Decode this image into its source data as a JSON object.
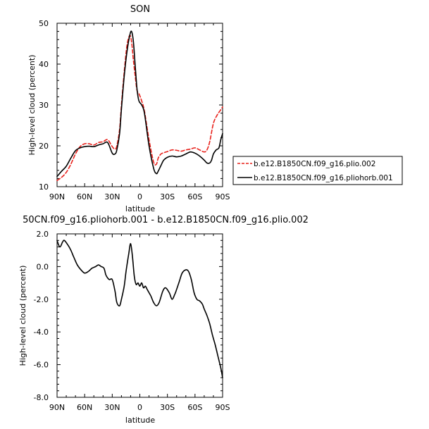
{
  "chart_data": [
    {
      "type": "line",
      "title": "SON",
      "xlabel": "latitude",
      "ylabel": "High-level cloud (percent)",
      "xlim": [
        90,
        -90
      ],
      "ylim": [
        10,
        50
      ],
      "xticks": [
        90,
        60,
        30,
        0,
        -30,
        -60,
        -90
      ],
      "xtick_labels": [
        "90N",
        "60N",
        "30N",
        "0",
        "30S",
        "60S",
        "90S"
      ],
      "yticks": [
        10,
        20,
        30,
        40,
        50
      ],
      "ytick_labels": [
        "10",
        "20",
        "30",
        "40",
        "50"
      ],
      "legend": "right",
      "series": [
        {
          "name": "b.e12.B1850CN.f09_g16.plio.002",
          "color": "#e8201a",
          "dash": "dashed",
          "x": [
            90,
            85,
            80,
            75,
            70,
            65,
            60,
            55,
            50,
            45,
            40,
            35,
            30,
            27,
            25,
            22,
            20,
            17,
            14,
            11,
            9,
            7,
            5,
            3,
            1,
            -2,
            -5,
            -10,
            -15,
            -18,
            -20,
            -23,
            -26,
            -30,
            -35,
            -40,
            -45,
            -50,
            -55,
            -60,
            -65,
            -70,
            -73,
            -76,
            -80,
            -84,
            -87,
            -90
          ],
          "y": [
            11.5,
            12.3,
            13.5,
            15.5,
            18.0,
            19.8,
            20.5,
            20.5,
            20.2,
            20.8,
            21.0,
            21.5,
            19.8,
            19.2,
            20.0,
            24.0,
            30.0,
            38.0,
            44.5,
            47.0,
            45.5,
            41.0,
            37.0,
            33.5,
            32.8,
            31.0,
            28.5,
            21.5,
            16.0,
            15.5,
            17.0,
            18.0,
            18.3,
            18.6,
            19.0,
            18.9,
            18.7,
            19.0,
            19.2,
            19.5,
            19.0,
            18.5,
            19.0,
            21.0,
            25.5,
            27.5,
            28.5,
            29.5
          ]
        },
        {
          "name": "b.e12.B1850CN.f09_g16.pliohorb.001",
          "color": "#000000",
          "dash": "solid",
          "x": [
            90,
            85,
            80,
            75,
            70,
            65,
            60,
            55,
            50,
            45,
            40,
            35,
            30,
            27,
            25,
            22,
            20,
            17,
            14,
            11,
            9,
            7,
            5,
            3,
            1,
            -2,
            -5,
            -10,
            -15,
            -18,
            -20,
            -23,
            -26,
            -30,
            -35,
            -40,
            -45,
            -50,
            -55,
            -60,
            -65,
            -70,
            -73,
            -76,
            -78,
            -80,
            -83,
            -86,
            -88,
            -90
          ],
          "y": [
            12.5,
            13.8,
            15.0,
            17.0,
            18.8,
            19.5,
            19.8,
            19.9,
            19.8,
            20.2,
            20.5,
            20.8,
            18.2,
            18.0,
            19.0,
            23.0,
            29.0,
            37.0,
            43.0,
            47.0,
            48.0,
            45.5,
            39.5,
            33.8,
            31.0,
            30.0,
            28.0,
            20.0,
            14.5,
            13.2,
            13.8,
            15.2,
            16.5,
            17.2,
            17.5,
            17.3,
            17.5,
            18.0,
            18.5,
            18.2,
            17.5,
            16.5,
            15.8,
            15.8,
            16.5,
            18.0,
            19.0,
            19.5,
            21.5,
            23.0
          ]
        }
      ]
    },
    {
      "type": "line",
      "title": "50CN.f09_g16.pliohorb.001 - b.e12.B1850CN.f09_g16.plio.002",
      "xlabel": "latitude",
      "ylabel": "High-level cloud (percent)",
      "xlim": [
        90,
        -90
      ],
      "ylim": [
        -8.0,
        2.0
      ],
      "xticks": [
        90,
        60,
        30,
        0,
        -30,
        -60,
        -90
      ],
      "xtick_labels": [
        "90N",
        "60N",
        "30N",
        "0",
        "30S",
        "60S",
        "90S"
      ],
      "yticks": [
        -8.0,
        -6.0,
        -4.0,
        -2.0,
        0.0,
        2.0
      ],
      "ytick_labels": [
        "-8.0",
        "-6.0",
        "-4.0",
        "-2.0",
        "0.0",
        "2.0"
      ],
      "series": [
        {
          "color": "#000000",
          "dash": "solid",
          "x": [
            90,
            87,
            84,
            82,
            78,
            75,
            72,
            68,
            64,
            60,
            56,
            52,
            48,
            45,
            42,
            39,
            37,
            35,
            33,
            30,
            27,
            25,
            22,
            20,
            17,
            15,
            12,
            10,
            8,
            6,
            4,
            2,
            0,
            -2,
            -4,
            -6,
            -8,
            -10,
            -12,
            -15,
            -18,
            -21,
            -25,
            -28,
            -32,
            -35,
            -38,
            -40,
            -43,
            -46,
            -50,
            -53,
            -56,
            -59,
            -62,
            -65,
            -68,
            -70,
            -73,
            -76,
            -79,
            -82,
            -85,
            -88,
            -90
          ],
          "y": [
            1.6,
            1.2,
            1.5,
            1.6,
            1.3,
            1.0,
            0.6,
            0.1,
            -0.2,
            -0.4,
            -0.3,
            -0.1,
            0.0,
            0.1,
            0.0,
            -0.1,
            -0.5,
            -0.7,
            -0.8,
            -0.8,
            -1.5,
            -2.2,
            -2.4,
            -2.0,
            -1.2,
            -0.3,
            0.8,
            1.4,
            0.6,
            -0.6,
            -1.1,
            -1.0,
            -1.2,
            -1.0,
            -1.3,
            -1.2,
            -1.4,
            -1.6,
            -1.8,
            -2.2,
            -2.4,
            -2.2,
            -1.5,
            -1.3,
            -1.6,
            -2.0,
            -1.7,
            -1.4,
            -0.9,
            -0.4,
            -0.2,
            -0.3,
            -0.8,
            -1.6,
            -2.0,
            -2.1,
            -2.3,
            -2.6,
            -3.0,
            -3.5,
            -4.2,
            -4.8,
            -5.5,
            -6.2,
            -6.8
          ]
        }
      ]
    }
  ]
}
